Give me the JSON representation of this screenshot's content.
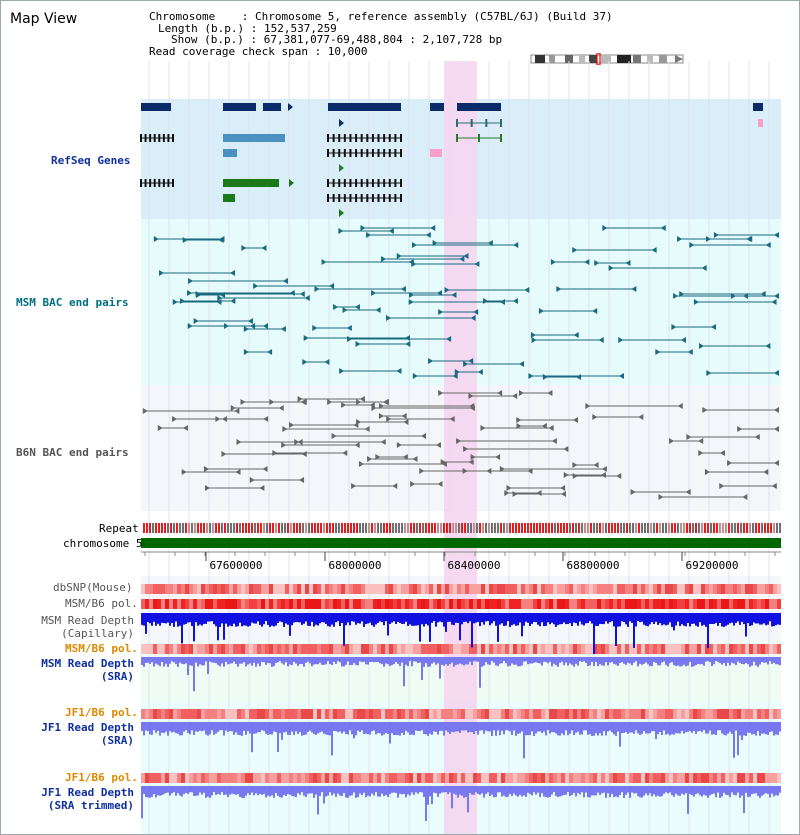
{
  "header": {
    "title": "Map View",
    "info_lines": [
      "Chromosome    : Chromosome 5, reference assembly (C57BL/6J) (Build 37)",
      "Length (b.p.) : 152,537,259",
      "Show (b.p.) : 67,381,077-69,488,804 : 2,107,728 bp",
      "Read coverage check span : 10,000"
    ]
  },
  "tracks": {
    "refseq": "RefSeq Genes",
    "msm_bac": "MSM BAC end pairs",
    "b6n_bac": "B6N BAC end pairs",
    "repeat": "Repeat",
    "chromosome": "chromosome 5",
    "dbsnp": "dbSNP(Mouse)",
    "msm_b6_pol": "MSM/B6 pol.",
    "msm_depth_cap_1": "MSM Read Depth",
    "msm_depth_cap_2": "(Capillary)",
    "msm_b6_pol_sra": "MSM/B6 pol.",
    "msm_depth_sra_1": "MSM Read Depth",
    "msm_depth_sra_2": "(SRA)",
    "jf1_b6_pol": "JF1/B6 pol.",
    "jf1_depth_sra_1": "JF1 Read Depth",
    "jf1_depth_sra_2": "(SRA)",
    "jf1_b6_pol_trim": "JF1/B6 pol.",
    "jf1_depth_trim_1": "JF1 Read Depth",
    "jf1_depth_trim_2": "(SRA trimmed)"
  },
  "ruler": {
    "ticks": [
      "67600000",
      "68000000",
      "68400000",
      "68800000",
      "69200000"
    ]
  },
  "colors": {
    "refseq_bg": "#d9eef8",
    "msm_bg": "#e6fbfb",
    "b6n_bg": "#f4f6fa",
    "highlight": "#f5d6f0",
    "chromosome_bar": "#006600",
    "depth_dark": "#1010e0",
    "depth_light": "#7878f0"
  }
}
